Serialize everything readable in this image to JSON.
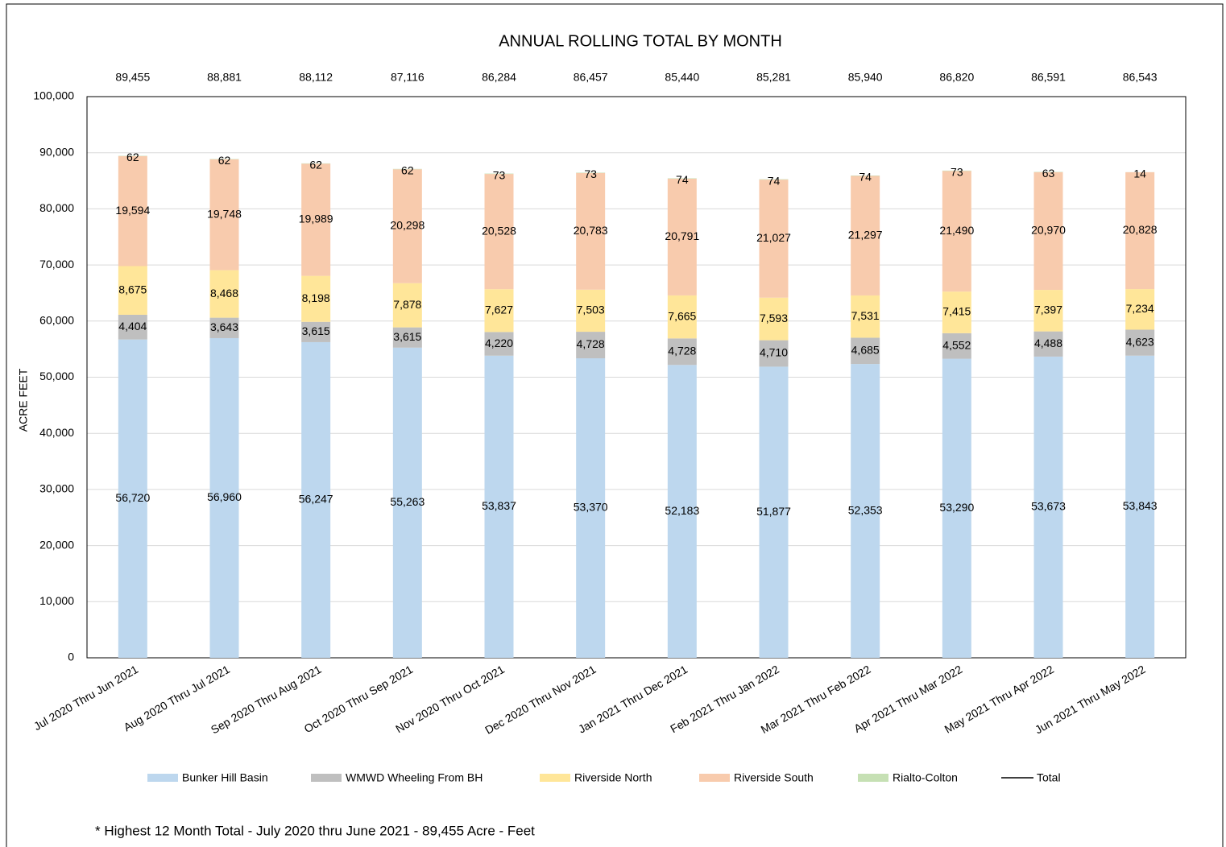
{
  "chart_data": {
    "type": "stacked_bar",
    "title": "ANNUAL  ROLLING TOTAL BY MONTH",
    "y_label": "ACRE FEET",
    "footnote": "* Highest 12 Month Total - July 2020 thru June 2021 - 89,455 Acre - Feet",
    "categories": [
      "Jul 2020 Thru Jun 2021",
      "Aug 2020 Thru Jul 2021",
      "Sep 2020 Thru Aug 2021",
      "Oct 2020 Thru Sep 2021",
      "Nov 2020 Thru Oct 2021",
      "Dec 2020 Thru Nov 2021",
      "Jan 2021 Thru Dec 2021",
      "Feb 2021 Thru Jan 2022",
      "Mar 2021 Thru Feb 2022",
      "Apr 2021 Thru Mar 2022",
      "May 2021 Thru Apr 2022",
      "Jun 2021 Thru May 2022"
    ],
    "series": [
      {
        "name": "Bunker Hill Basin",
        "color": "#bdd7ee",
        "values": [
          56720,
          56960,
          56247,
          55263,
          53837,
          53370,
          52183,
          51877,
          52353,
          53290,
          53673,
          53843
        ],
        "value_labels": [
          "56,720",
          "56,960",
          "56,247",
          "55,263",
          "53,837",
          "53,370",
          "52,183",
          "51,877",
          "52,353",
          "53,290",
          "53,673",
          "53,843"
        ]
      },
      {
        "name": "WMWD Wheeling From BH",
        "color": "#bfbfbf",
        "values": [
          4404,
          3643,
          3615,
          3615,
          4220,
          4728,
          4728,
          4710,
          4685,
          4552,
          4488,
          4623
        ],
        "value_labels": [
          "4,404",
          "3,643",
          "3,615",
          "3,615",
          "4,220",
          "4,728",
          "4,728",
          "4,710",
          "4,685",
          "4,552",
          "4,488",
          "4,623"
        ]
      },
      {
        "name": "Riverside North",
        "color": "#ffe699",
        "values": [
          8675,
          8468,
          8198,
          7878,
          7627,
          7503,
          7665,
          7593,
          7531,
          7415,
          7397,
          7234
        ],
        "value_labels": [
          "8,675",
          "8,468",
          "8,198",
          "7,878",
          "7,627",
          "7,503",
          "7,665",
          "7,593",
          "7,531",
          "7,415",
          "7,397",
          "7,234"
        ]
      },
      {
        "name": "Riverside South",
        "color": "#f8cbad",
        "values": [
          19594,
          19748,
          19989,
          20298,
          20528,
          20783,
          20791,
          21027,
          21297,
          21490,
          20970,
          20828
        ],
        "value_labels": [
          "19,594",
          "19,748",
          "19,989",
          "20,298",
          "20,528",
          "20,783",
          "20,791",
          "21,027",
          "21,297",
          "21,490",
          "20,970",
          "20,828"
        ]
      },
      {
        "name": "Rialto-Colton",
        "color": "#c6e0b4",
        "values": [
          62,
          62,
          62,
          62,
          73,
          73,
          74,
          74,
          74,
          73,
          63,
          14
        ]
      }
    ],
    "total": {
      "name": "Total",
      "color": "#000000",
      "values": [
        89455,
        88881,
        88112,
        87116,
        86284,
        86457,
        85440,
        85281,
        85940,
        86820,
        86591,
        86543
      ],
      "value_labels": [
        "89,455",
        "88,881",
        "88,112",
        "87,116",
        "86,284",
        "86,457",
        "85,440",
        "85,281",
        "85,940",
        "86,820",
        "86,591",
        "86,543"
      ]
    },
    "ylim": [
      0,
      100000
    ],
    "yticks": [
      0,
      {
        "value": 10000,
        "label": "10,000"
      },
      {
        "value": 20000,
        "label": "20,000"
      },
      {
        "value": 30000,
        "label": "30,000"
      },
      {
        "value": 40000,
        "label": "40,000"
      },
      {
        "value": 50000,
        "label": "50,000"
      },
      {
        "value": 60000,
        "label": "60,000"
      },
      {
        "value": 70000,
        "label": "70,000"
      },
      {
        "value": 80000,
        "label": "80,000"
      },
      {
        "value": 90000,
        "label": "90,000"
      },
      {
        "value": 100000,
        "label": "100,000"
      }
    ],
    "grid": true
  }
}
